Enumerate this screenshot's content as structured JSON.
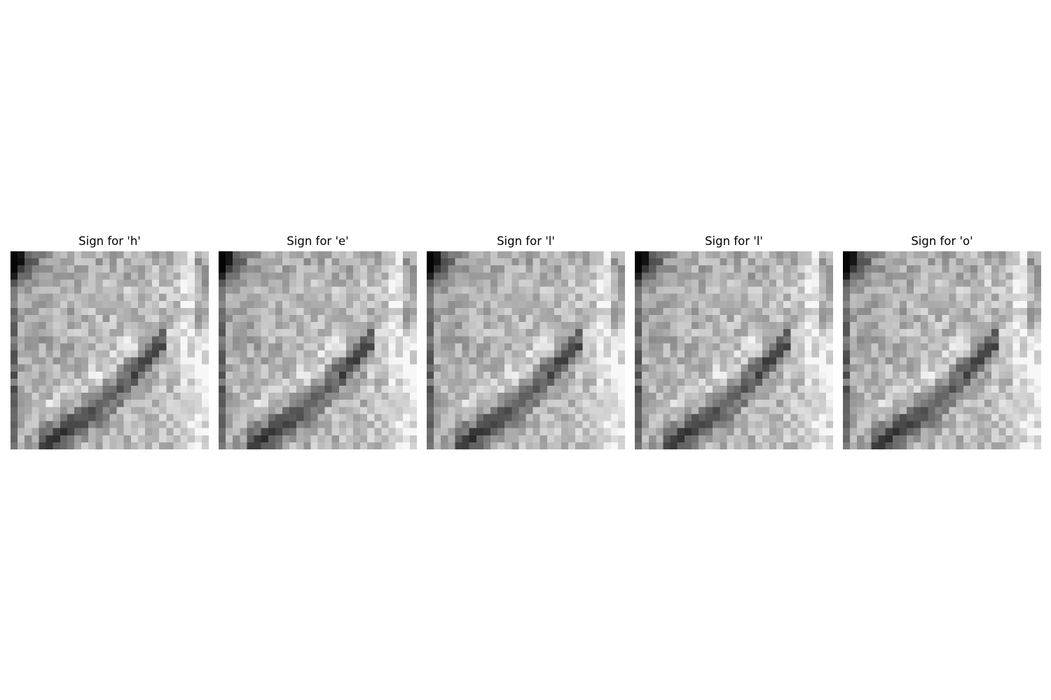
{
  "figure": {
    "panels": [
      {
        "title": "Sign for 'h'",
        "variant": 0
      },
      {
        "title": "Sign for 'e'",
        "variant": 1
      },
      {
        "title": "Sign for 'l'",
        "variant": 2
      },
      {
        "title": "Sign for 'l'",
        "variant": 3
      },
      {
        "title": "Sign for 'o'",
        "variant": 4
      }
    ],
    "image_grid_size": 28,
    "colormap": "gray"
  }
}
